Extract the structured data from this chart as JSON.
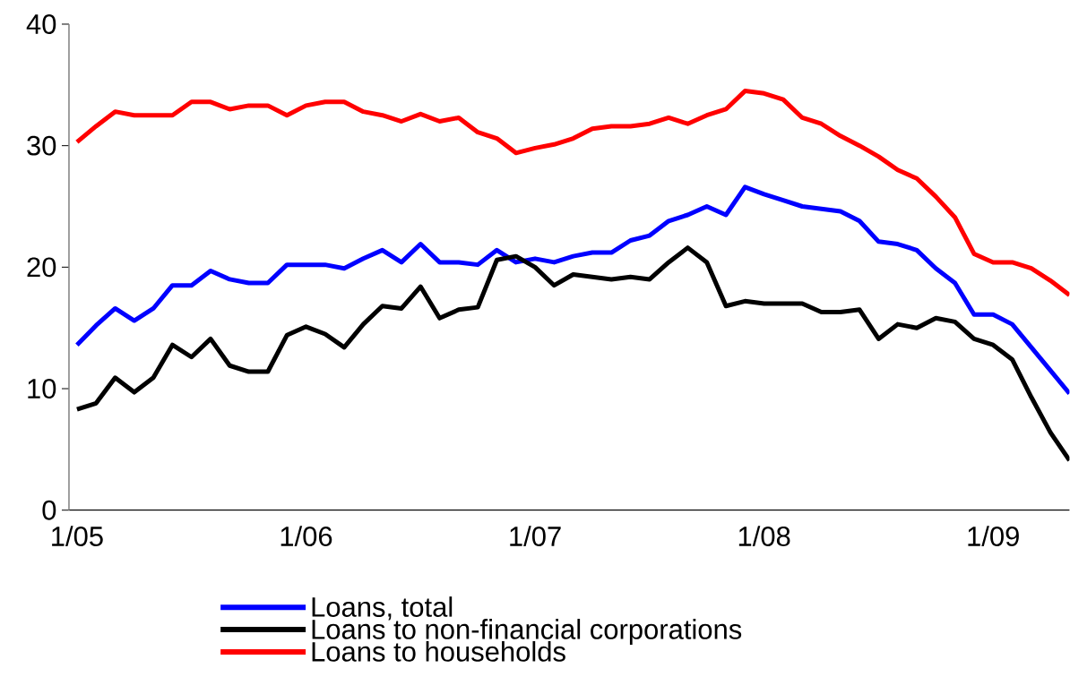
{
  "chart_data": {
    "type": "line",
    "categories": [
      "1/05",
      null,
      null,
      null,
      null,
      null,
      null,
      null,
      null,
      null,
      null,
      null,
      "1/06",
      null,
      null,
      null,
      null,
      null,
      null,
      null,
      null,
      null,
      null,
      null,
      "1/07",
      null,
      null,
      null,
      null,
      null,
      null,
      null,
      null,
      null,
      null,
      null,
      "1/08",
      null,
      null,
      null,
      null,
      null,
      null,
      null,
      null,
      null,
      null,
      null,
      "1/09",
      null,
      null,
      null,
      null
    ],
    "series": [
      {
        "name": "Loans, total",
        "color": "#0000ff",
        "values": [
          13.6,
          15.2,
          16.6,
          15.6,
          16.6,
          18.5,
          18.5,
          19.7,
          19.0,
          18.7,
          18.7,
          20.2,
          20.2,
          20.2,
          19.9,
          20.7,
          21.4,
          20.4,
          21.9,
          20.4,
          20.4,
          20.2,
          21.4,
          20.4,
          20.7,
          20.4,
          20.9,
          21.2,
          21.2,
          22.2,
          22.6,
          23.8,
          24.3,
          25.0,
          24.3,
          26.6,
          26.0,
          25.5,
          25.0,
          24.8,
          24.6,
          23.8,
          22.1,
          21.9,
          21.4,
          19.9,
          18.7,
          16.1,
          16.1,
          15.3,
          13.4,
          11.5,
          9.6
        ]
      },
      {
        "name": "Loans to non-financial corporations",
        "color": "#000000",
        "values": [
          8.3,
          8.8,
          10.9,
          9.7,
          10.9,
          13.6,
          12.6,
          14.1,
          11.9,
          11.4,
          11.4,
          14.4,
          15.1,
          14.5,
          13.4,
          15.3,
          16.8,
          16.6,
          18.4,
          15.8,
          16.5,
          16.7,
          20.6,
          20.9,
          20.0,
          18.5,
          19.4,
          19.2,
          19.0,
          19.2,
          19.0,
          20.4,
          21.6,
          20.4,
          16.8,
          17.2,
          17.0,
          17.0,
          17.0,
          16.3,
          16.3,
          16.5,
          14.1,
          15.3,
          15.0,
          15.8,
          15.5,
          14.1,
          13.6,
          12.4,
          9.3,
          6.4,
          4.1
        ]
      },
      {
        "name": "Loans to households",
        "color": "#ff0000",
        "values": [
          30.3,
          31.6,
          32.8,
          32.5,
          32.5,
          32.5,
          33.6,
          33.6,
          33.0,
          33.3,
          33.3,
          32.5,
          33.3,
          33.6,
          33.6,
          32.8,
          32.5,
          32.0,
          32.6,
          32.0,
          32.3,
          31.1,
          30.6,
          29.4,
          29.8,
          30.1,
          30.6,
          31.4,
          31.6,
          31.6,
          31.8,
          32.3,
          31.8,
          32.5,
          33.0,
          34.5,
          34.3,
          33.8,
          32.3,
          31.8,
          30.8,
          30.0,
          29.1,
          28.0,
          27.3,
          25.8,
          24.1,
          21.1,
          20.4,
          20.4,
          19.9,
          18.9,
          17.7
        ]
      }
    ],
    "ylim": [
      0,
      40
    ],
    "yticks": [
      0,
      10,
      20,
      30,
      40
    ],
    "legend": "bottom"
  }
}
